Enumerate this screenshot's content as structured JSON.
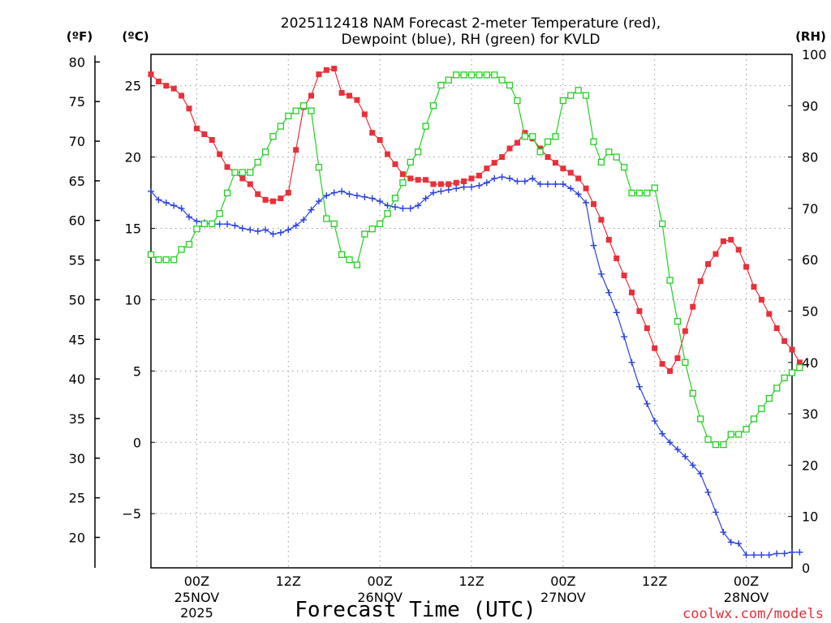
{
  "chart_data": {
    "type": "line",
    "title_line1": "2025112418 NAM Forecast 2-meter Temperature (red),",
    "title_line2": "Dewpoint (blue), RH (green) for KVLD",
    "xlabel": "Forecast Time (UTC)",
    "credit": "coolwx.com/models",
    "units": {
      "fahrenheit": "(ºF)",
      "celsius": "(ºC)",
      "rh": "(RH)"
    },
    "x_range_hours": [
      0,
      84
    ],
    "x_ticks": [
      {
        "hour": 6,
        "label": "00Z",
        "sub1": "25NOV",
        "sub2": "2025"
      },
      {
        "hour": 18,
        "label": "12Z",
        "sub1": "",
        "sub2": ""
      },
      {
        "hour": 30,
        "label": "00Z",
        "sub1": "26NOV",
        "sub2": ""
      },
      {
        "hour": 42,
        "label": "12Z",
        "sub1": "",
        "sub2": ""
      },
      {
        "hour": 54,
        "label": "00Z",
        "sub1": "27NOV",
        "sub2": ""
      },
      {
        "hour": 66,
        "label": "12Z",
        "sub1": "",
        "sub2": ""
      },
      {
        "hour": 78,
        "label": "00Z",
        "sub1": "28NOV",
        "sub2": ""
      }
    ],
    "y_celsius": {
      "range": [
        -8.8,
        27.2
      ],
      "ticks": [
        -5,
        0,
        5,
        10,
        15,
        20,
        25
      ]
    },
    "y_fahrenheit": {
      "ticks": [
        20,
        25,
        30,
        35,
        40,
        45,
        50,
        55,
        60,
        65,
        70,
        75,
        80
      ]
    },
    "y_rh": {
      "range": [
        0,
        100
      ],
      "ticks": [
        0,
        10,
        20,
        30,
        40,
        50,
        60,
        70,
        80,
        90,
        100
      ]
    },
    "series": [
      {
        "name": "Temperature",
        "unit": "C",
        "color": "#e8303a",
        "marker": "filled-square",
        "values": [
          25.8,
          25.3,
          25.0,
          24.8,
          24.3,
          23.4,
          22.0,
          21.6,
          21.2,
          20.2,
          19.3,
          18.9,
          18.5,
          18.1,
          17.4,
          17.0,
          16.9,
          17.1,
          17.5,
          20.5,
          23.5,
          24.3,
          25.8,
          26.1,
          26.2,
          24.5,
          24.3,
          24.0,
          23.0,
          21.7,
          21.2,
          20.2,
          19.5,
          18.8,
          18.5,
          18.4,
          18.4,
          18.1,
          18.1,
          18.1,
          18.2,
          18.3,
          18.5,
          18.7,
          19.2,
          19.6,
          20.0,
          20.6,
          21.0,
          21.7,
          21.3,
          20.6,
          20.0,
          19.6,
          19.2,
          18.9,
          18.5,
          17.8,
          16.7,
          15.6,
          14.2,
          12.9,
          11.7,
          10.5,
          9.2,
          8.0,
          6.6,
          5.5,
          5.0,
          5.9,
          7.8,
          9.5,
          11.3,
          12.5,
          13.2,
          14.1,
          14.2,
          13.5,
          12.3,
          10.9,
          10.0,
          9.0,
          8.0,
          7.1,
          6.5,
          5.6
        ]
      },
      {
        "name": "Dewpoint",
        "unit": "C",
        "color": "#2a40e0",
        "marker": "plus",
        "values": [
          17.6,
          17.0,
          16.8,
          16.6,
          16.4,
          15.8,
          15.5,
          15.4,
          15.3,
          15.3,
          15.3,
          15.2,
          15.0,
          14.9,
          14.8,
          14.9,
          14.6,
          14.7,
          14.9,
          15.2,
          15.6,
          16.3,
          16.9,
          17.3,
          17.5,
          17.6,
          17.4,
          17.3,
          17.2,
          17.1,
          16.9,
          16.6,
          16.5,
          16.4,
          16.4,
          16.6,
          17.1,
          17.5,
          17.6,
          17.7,
          17.8,
          17.9,
          17.9,
          18.0,
          18.2,
          18.5,
          18.6,
          18.5,
          18.3,
          18.3,
          18.5,
          18.1,
          18.1,
          18.1,
          18.1,
          17.8,
          17.4,
          16.8,
          13.8,
          11.8,
          10.5,
          9.1,
          7.4,
          5.6,
          3.9,
          2.7,
          1.5,
          0.6,
          0.0,
          -0.5,
          -1.0,
          -1.6,
          -2.2,
          -3.5,
          -4.9,
          -6.3,
          -7.0,
          -7.1,
          -7.9,
          -7.9,
          -7.9,
          -7.9,
          -7.8,
          -7.8,
          -7.7,
          -7.7
        ]
      },
      {
        "name": "Relative Humidity",
        "unit": "%",
        "color": "#22d022",
        "marker": "open-square",
        "values": [
          61,
          60,
          60,
          60,
          62,
          63,
          66,
          67,
          67,
          69,
          73,
          77,
          77,
          77,
          79,
          81,
          84,
          86,
          88,
          89,
          90,
          89,
          78,
          68,
          67,
          61,
          60,
          59,
          65,
          66,
          67,
          69,
          72,
          75,
          79,
          81,
          86,
          90,
          94,
          95,
          96,
          96,
          96,
          96,
          96,
          96,
          95,
          94,
          91,
          84,
          84,
          81,
          83,
          84,
          91,
          92,
          93,
          92,
          83,
          79,
          81,
          80,
          78,
          73,
          73,
          73,
          74,
          67,
          56,
          48,
          40,
          34,
          29,
          25,
          24,
          24,
          26,
          26,
          27,
          29,
          31,
          33,
          35,
          37,
          38,
          39
        ]
      }
    ]
  }
}
